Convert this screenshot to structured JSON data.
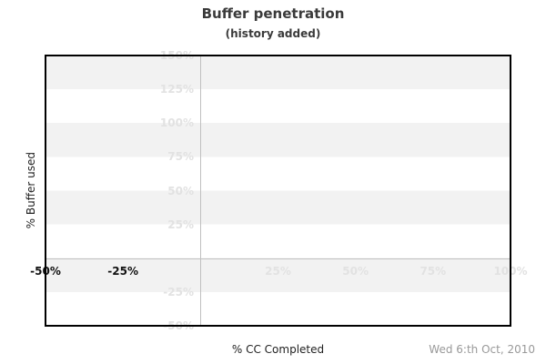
{
  "chart_data": {
    "type": "line",
    "title": "Buffer penetration",
    "subtitle": "(history added)",
    "xlabel": "% CC Completed",
    "ylabel": "% Buffer used",
    "date_label": "Wed 6:th Oct, 2010",
    "xlim": [
      -50,
      100
    ],
    "ylim": [
      -50,
      150
    ],
    "x_ticks": [
      {
        "value": -50,
        "label": "-50%",
        "emphasis": true
      },
      {
        "value": -25,
        "label": "-25%",
        "emphasis": true
      },
      {
        "value": 25,
        "label": "25%",
        "emphasis": false
      },
      {
        "value": 50,
        "label": "50%",
        "emphasis": false
      },
      {
        "value": 75,
        "label": "75%",
        "emphasis": false
      },
      {
        "value": 100,
        "label": "100%",
        "emphasis": false
      }
    ],
    "y_ticks": [
      {
        "value": 150,
        "label": "150%"
      },
      {
        "value": 125,
        "label": "125%"
      },
      {
        "value": 100,
        "label": "100%"
      },
      {
        "value": 75,
        "label": "75%"
      },
      {
        "value": 50,
        "label": "50%"
      },
      {
        "value": 25,
        "label": "25%"
      },
      {
        "value": -25,
        "label": "-25%"
      },
      {
        "value": -50,
        "label": "-50%"
      }
    ],
    "series": [],
    "legend": "none",
    "grid": "alternating-horizontal-bands",
    "zero_axis_lines": true
  },
  "colors": {
    "band": "#f2f2f2",
    "faint_label": "#e2e2e2",
    "strong_label": "#111111",
    "zero_line": "#c0c0c0",
    "plot_border": "#000000",
    "heading_text": "#3a3a3a",
    "axis_title_text": "#222222",
    "date_text": "#999999",
    "background": "#ffffff"
  }
}
